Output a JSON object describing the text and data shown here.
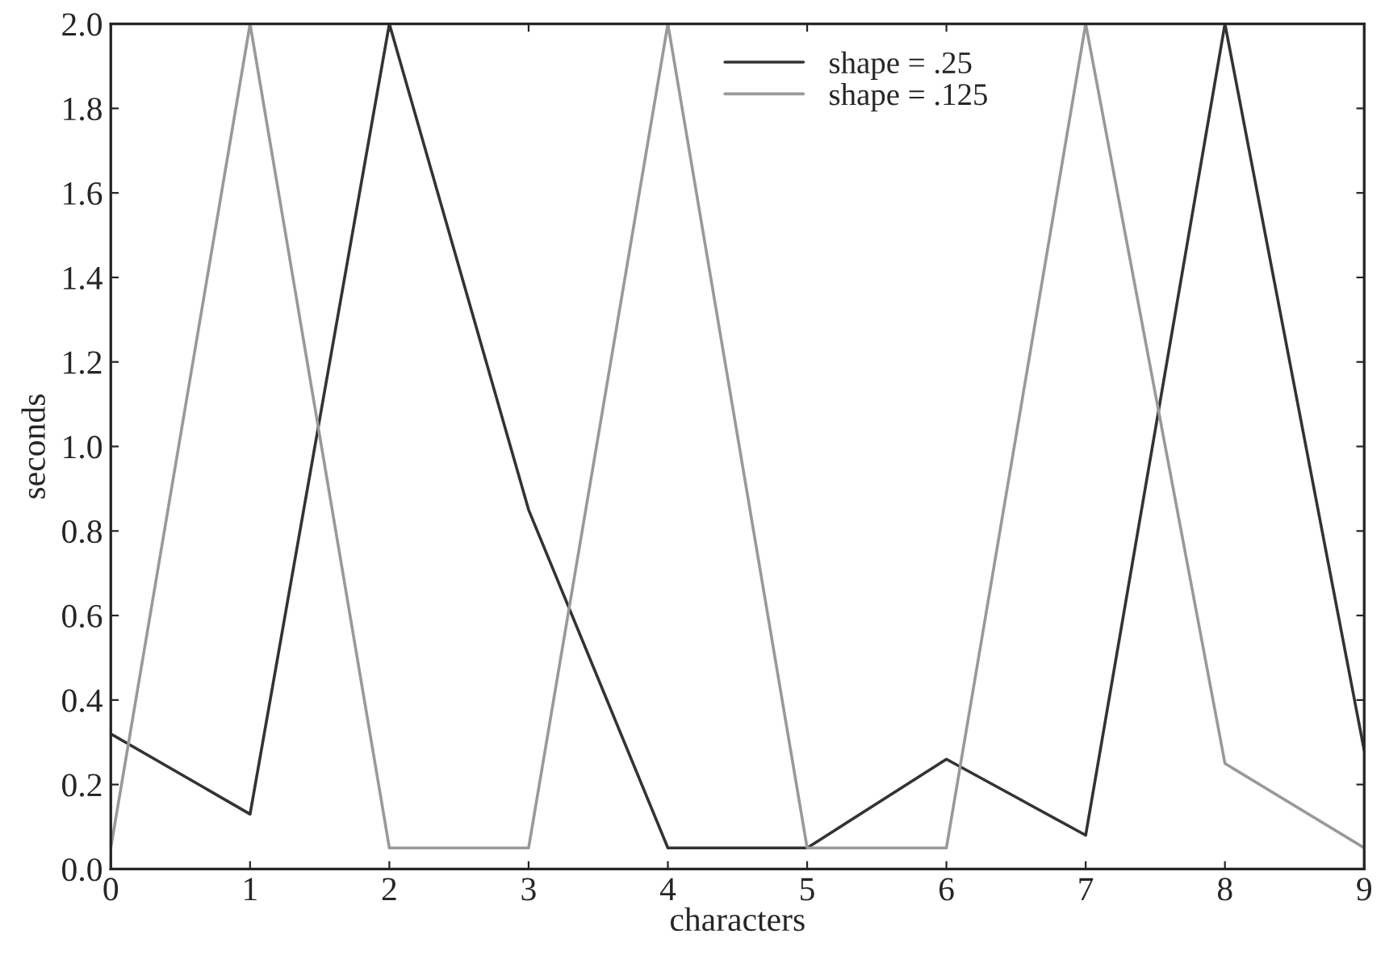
{
  "chart_data": {
    "type": "line",
    "xlabel": "characters",
    "ylabel": "seconds",
    "x": [
      0,
      1,
      2,
      3,
      4,
      5,
      6,
      7,
      8,
      9
    ],
    "series": [
      {
        "name": "shape = .25",
        "color": "#333333",
        "values": [
          0.32,
          0.13,
          2.0,
          0.85,
          0.05,
          0.05,
          0.26,
          0.08,
          2.0,
          0.28
        ]
      },
      {
        "name": "shape = .125",
        "color": "#999999",
        "values": [
          0.05,
          2.0,
          0.05,
          0.05,
          2.0,
          0.05,
          0.05,
          2.0,
          0.25,
          0.05
        ]
      }
    ],
    "xlim": [
      0,
      9
    ],
    "xticks": [
      0,
      1,
      2,
      3,
      4,
      5,
      6,
      7,
      8,
      9
    ],
    "ylim": [
      0,
      2.0
    ],
    "yticks": [
      {
        "value": 0,
        "label": "0.0"
      },
      {
        "value": 0.2,
        "label": "0.2"
      },
      {
        "value": 0.4,
        "label": "0.4"
      },
      {
        "value": 0.6,
        "label": "0.6"
      },
      {
        "value": 0.8,
        "label": "0.8"
      },
      {
        "value": 1.0,
        "label": "1.0"
      },
      {
        "value": 1.2,
        "label": "1.2"
      },
      {
        "value": 1.4,
        "label": "1.4"
      },
      {
        "value": 1.6,
        "label": "1.6"
      },
      {
        "value": 1.8,
        "label": "1.8"
      },
      {
        "value": 2.0,
        "label": "2.0"
      }
    ],
    "grid": false,
    "legend": "top",
    "line_style": "solid"
  }
}
